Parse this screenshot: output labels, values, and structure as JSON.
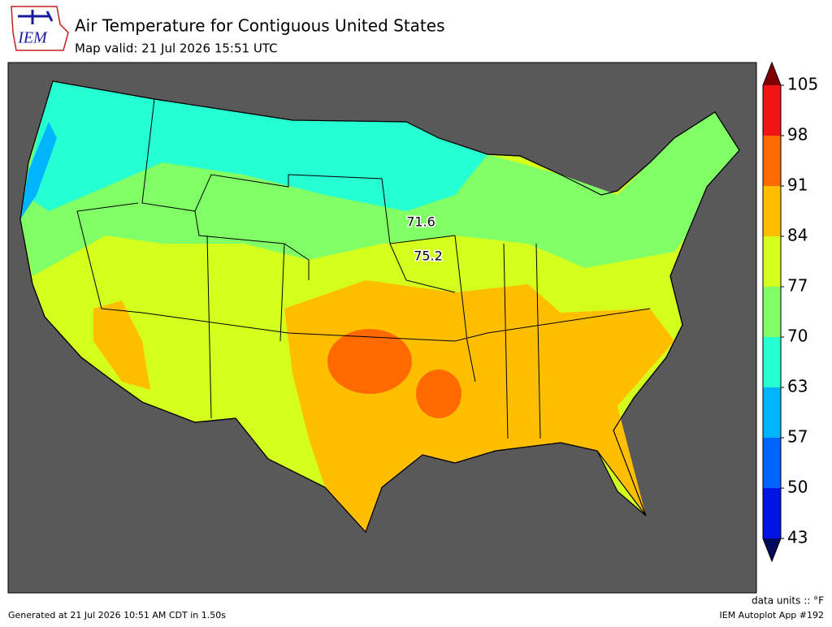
{
  "header": {
    "logo": "IEM",
    "title": "Air Temperature for Contiguous United States",
    "subtitle": "Map valid: 21 Jul 2026 15:51 UTC"
  },
  "colorbar": {
    "ticks": [
      43,
      50,
      57,
      63,
      70,
      77,
      84,
      91,
      98,
      105
    ],
    "colors": [
      "#0014e6",
      "#0064ff",
      "#00b4ff",
      "#26ffd2",
      "#80ff66",
      "#d4ff1e",
      "#ffbf00",
      "#ff6a00",
      "#f01414"
    ],
    "under_color": "#000a5a",
    "over_color": "#800000"
  },
  "station_values": [
    71.6,
    75.2
  ],
  "footer": {
    "units": "data units :: °F",
    "generated": "Generated at 21 Jul 2026 10:51 AM CDT in 1.50s",
    "app": "IEM Autoplot App #192"
  }
}
